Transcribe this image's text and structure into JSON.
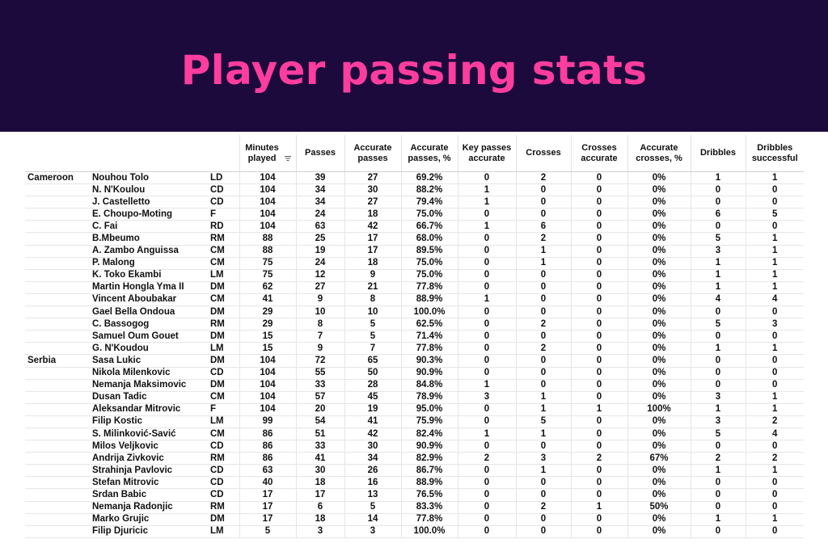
{
  "title": "Player passing stats",
  "colors": {
    "banner_bg": "#1c0a3d",
    "title": "#ff3d9e"
  },
  "headers": {
    "minutes": "Minutes played",
    "passes": "Passes",
    "accurate_passes": "Accurate passes",
    "accurate_passes_pct": "Accurate passes, %",
    "key_passes": "Key passes accurate",
    "crosses": "Crosses",
    "crosses_accurate": "Crosses accurate",
    "accurate_crosses_pct": "Accurate crosses, %",
    "dribbles": "Dribbles",
    "dribbles_successful": "Dribbles successful"
  },
  "sort_icon": "sort-descending-icon",
  "rows": [
    [
      "Cameroon",
      "Nouhou Tolo",
      "LD",
      "104",
      "39",
      "27",
      "69.2%",
      "0",
      "2",
      "0",
      "0%",
      "1",
      "1"
    ],
    [
      "",
      "N. N'Koulou",
      "CD",
      "104",
      "34",
      "30",
      "88.2%",
      "1",
      "0",
      "0",
      "0%",
      "0",
      "0"
    ],
    [
      "",
      "J. Castelletto",
      "CD",
      "104",
      "34",
      "27",
      "79.4%",
      "1",
      "0",
      "0",
      "0%",
      "0",
      "0"
    ],
    [
      "",
      "E. Choupo-Moting",
      "F",
      "104",
      "24",
      "18",
      "75.0%",
      "0",
      "0",
      "0",
      "0%",
      "6",
      "5"
    ],
    [
      "",
      "C. Fai",
      "RD",
      "104",
      "63",
      "42",
      "66.7%",
      "1",
      "6",
      "0",
      "0%",
      "0",
      "0"
    ],
    [
      "",
      "B.Mbeumo",
      "RM",
      "88",
      "25",
      "17",
      "68.0%",
      "0",
      "2",
      "0",
      "0%",
      "5",
      "1"
    ],
    [
      "",
      "A. Zambo Anguissa",
      "CM",
      "88",
      "19",
      "17",
      "89.5%",
      "0",
      "1",
      "0",
      "0%",
      "3",
      "1"
    ],
    [
      "",
      "P. Malong",
      "CM",
      "75",
      "24",
      "18",
      "75.0%",
      "0",
      "1",
      "0",
      "0%",
      "1",
      "1"
    ],
    [
      "",
      "K. Toko Ekambi",
      "LM",
      "75",
      "12",
      "9",
      "75.0%",
      "0",
      "0",
      "0",
      "0%",
      "1",
      "1"
    ],
    [
      "",
      "Martin Hongla Yma II",
      "DM",
      "62",
      "27",
      "21",
      "77.8%",
      "0",
      "0",
      "0",
      "0%",
      "1",
      "1"
    ],
    [
      "",
      "Vincent Aboubakar",
      "CM",
      "41",
      "9",
      "8",
      "88.9%",
      "1",
      "0",
      "0",
      "0%",
      "4",
      "4"
    ],
    [
      "",
      "Gael Bella Ondoua",
      "DM",
      "29",
      "10",
      "10",
      "100.0%",
      "0",
      "0",
      "0",
      "0%",
      "0",
      "0"
    ],
    [
      "",
      "C. Bassogog",
      "RM",
      "29",
      "8",
      "5",
      "62.5%",
      "0",
      "2",
      "0",
      "0%",
      "5",
      "3"
    ],
    [
      "",
      "Samuel Oum Gouet",
      "DM",
      "15",
      "7",
      "5",
      "71.4%",
      "0",
      "0",
      "0",
      "0%",
      "0",
      "0"
    ],
    [
      "",
      "G. N'Koudou",
      "LM",
      "15",
      "9",
      "7",
      "77.8%",
      "0",
      "2",
      "0",
      "0%",
      "1",
      "1"
    ],
    [
      "Serbia",
      "Sasa Lukic",
      "DM",
      "104",
      "72",
      "65",
      "90.3%",
      "0",
      "0",
      "0",
      "0%",
      "0",
      "0"
    ],
    [
      "",
      "Nikola Milenkovic",
      "CD",
      "104",
      "55",
      "50",
      "90.9%",
      "0",
      "0",
      "0",
      "0%",
      "0",
      "0"
    ],
    [
      "",
      "Nemanja Maksimovic",
      "DM",
      "104",
      "33",
      "28",
      "84.8%",
      "1",
      "0",
      "0",
      "0%",
      "0",
      "0"
    ],
    [
      "",
      "Dusan Tadic",
      "CM",
      "104",
      "57",
      "45",
      "78.9%",
      "3",
      "1",
      "0",
      "0%",
      "3",
      "1"
    ],
    [
      "",
      "Aleksandar Mitrovic",
      "F",
      "104",
      "20",
      "19",
      "95.0%",
      "0",
      "1",
      "1",
      "100%",
      "1",
      "1"
    ],
    [
      "",
      "Filip Kostic",
      "LM",
      "99",
      "54",
      "41",
      "75.9%",
      "0",
      "5",
      "0",
      "0%",
      "3",
      "2"
    ],
    [
      "",
      "S. Milinković-Savić",
      "CM",
      "86",
      "51",
      "42",
      "82.4%",
      "1",
      "1",
      "0",
      "0%",
      "5",
      "4"
    ],
    [
      "",
      "Milos Veljkovic",
      "CD",
      "86",
      "33",
      "30",
      "90.9%",
      "0",
      "0",
      "0",
      "0%",
      "0",
      "0"
    ],
    [
      "",
      "Andrija Zivkovic",
      "RM",
      "86",
      "41",
      "34",
      "82.9%",
      "2",
      "3",
      "2",
      "67%",
      "2",
      "2"
    ],
    [
      "",
      "Strahinja Pavlovic",
      "CD",
      "63",
      "30",
      "26",
      "86.7%",
      "0",
      "1",
      "0",
      "0%",
      "1",
      "1"
    ],
    [
      "",
      "Stefan Mitrovic",
      "CD",
      "40",
      "18",
      "16",
      "88.9%",
      "0",
      "0",
      "0",
      "0%",
      "0",
      "0"
    ],
    [
      "",
      "Srdan Babic",
      "CD",
      "17",
      "17",
      "13",
      "76.5%",
      "0",
      "0",
      "0",
      "0%",
      "0",
      "0"
    ],
    [
      "",
      "Nemanja Radonjic",
      "RM",
      "17",
      "6",
      "5",
      "83.3%",
      "0",
      "2",
      "1",
      "50%",
      "0",
      "0"
    ],
    [
      "",
      "Marko Grujic",
      "DM",
      "17",
      "18",
      "14",
      "77.8%",
      "0",
      "0",
      "0",
      "0%",
      "1",
      "1"
    ],
    [
      "",
      "Filip Djuricic",
      "LM",
      "5",
      "3",
      "3",
      "100.0%",
      "0",
      "0",
      "0",
      "0%",
      "0",
      "0"
    ]
  ]
}
